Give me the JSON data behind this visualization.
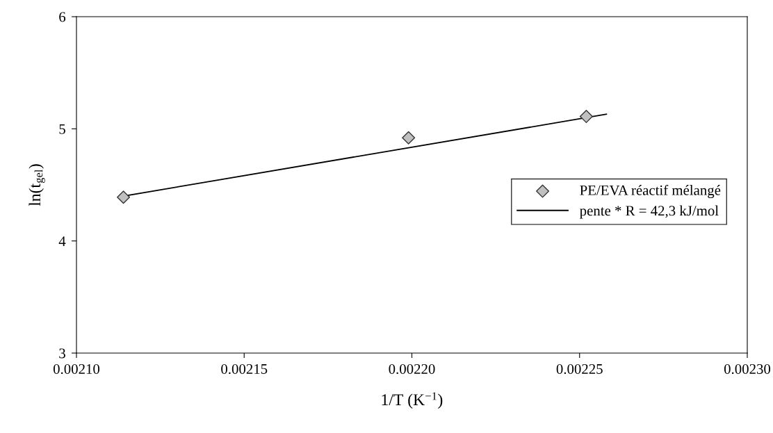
{
  "chart_data": {
    "type": "scatter",
    "xlabel": "1/T (K$^{−1}$)",
    "ylabel": "ln(t$_{gel}$)",
    "series": [
      {
        "name": "PE/EVA réactif mélangé",
        "color": "#c0c0c0",
        "marker": "diamond",
        "x": [
          0.002114,
          0.002199,
          0.002252
        ],
        "values": [
          4.39,
          4.92,
          5.11
        ]
      },
      {
        "name": "pente * R = 42,3 kJ/mol",
        "type": "line",
        "color": "#000000",
        "line_style": "solid",
        "x": [
          0.002114,
          0.002258
        ],
        "values": [
          4.4,
          5.13
        ]
      }
    ],
    "xlim": [
      0.0021,
      0.0023
    ],
    "xticks": [
      {
        "value": 0.0021,
        "label": "0.00210"
      },
      {
        "value": 0.00215,
        "label": "0.00215"
      },
      {
        "value": 0.0022,
        "label": "0.00220"
      },
      {
        "value": 0.00225,
        "label": "0.00225"
      },
      {
        "value": 0.0023,
        "label": "0.00230"
      }
    ],
    "ylim": [
      3,
      6
    ],
    "yticks": [
      3,
      4,
      5,
      6
    ],
    "grid": false,
    "legend": "right"
  }
}
